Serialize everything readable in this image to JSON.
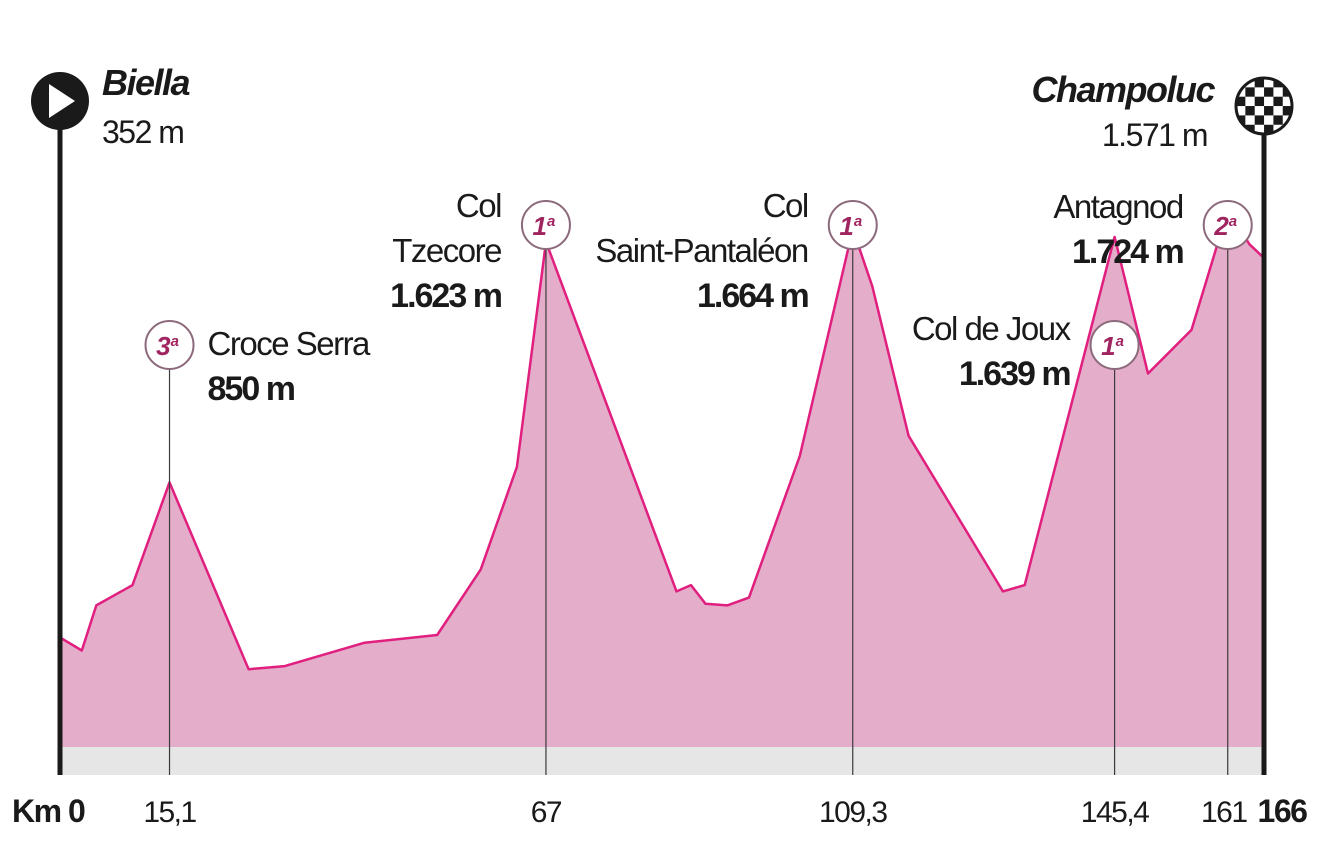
{
  "chart_data": {
    "type": "area",
    "x_unit": "Km",
    "y_unit": "m",
    "start": {
      "name": "Biella",
      "elevation": "352 m",
      "icon": "start-play-icon"
    },
    "finish": {
      "name": "Champoluc",
      "elevation": "1.571 m",
      "icon": "checkered-flag-icon"
    },
    "x_range": [
      0,
      166
    ],
    "y_range": [
      0,
      2400
    ],
    "profile": [
      [
        0,
        352
      ],
      [
        3,
        310
      ],
      [
        5,
        455
      ],
      [
        10,
        520
      ],
      [
        15.1,
        850
      ],
      [
        26,
        250
      ],
      [
        31,
        260
      ],
      [
        42,
        335
      ],
      [
        52,
        360
      ],
      [
        58,
        570
      ],
      [
        63,
        900
      ],
      [
        67,
        1623
      ],
      [
        85,
        500
      ],
      [
        87,
        520
      ],
      [
        89,
        460
      ],
      [
        92,
        455
      ],
      [
        95,
        480
      ],
      [
        102,
        935
      ],
      [
        109.3,
        1664
      ],
      [
        112,
        1480
      ],
      [
        117,
        1000
      ],
      [
        130,
        500
      ],
      [
        133,
        520
      ],
      [
        145.4,
        1639
      ],
      [
        150,
        1200
      ],
      [
        156,
        1340
      ],
      [
        161,
        1724
      ],
      [
        164,
        1615
      ],
      [
        166,
        1571
      ]
    ],
    "climbs": [
      {
        "name": "Croce Serra",
        "elevation": "850 m",
        "km": 15.1,
        "category": "3",
        "category_suffix": "a"
      },
      {
        "name_lines": [
          "Col",
          "Tzecore"
        ],
        "elevation": "1.623 m",
        "km": 67,
        "category": "1",
        "category_suffix": "a"
      },
      {
        "name_lines": [
          "Col",
          "Saint-Pantaléon"
        ],
        "elevation": "1.664 m",
        "km": 109.3,
        "category": "1",
        "category_suffix": "a"
      },
      {
        "name": "Col de Joux",
        "elevation": "1.639 m",
        "km": 145.4,
        "category": "1",
        "category_suffix": "a"
      },
      {
        "name": "Antagnod",
        "elevation": "1.724 m",
        "km": 161,
        "category": "2",
        "category_suffix": "a"
      }
    ],
    "x_tick_labels": [
      {
        "km": 0,
        "label": "Km 0"
      },
      {
        "km": 15.1,
        "label": "15,1"
      },
      {
        "km": 67,
        "label": "67"
      },
      {
        "km": 109.3,
        "label": "109,3"
      },
      {
        "km": 145.4,
        "label": "145,4"
      },
      {
        "km": 161,
        "label": "161"
      },
      {
        "km": 166,
        "label": "166"
      }
    ],
    "colors": {
      "fill": "#e4aecb",
      "line": "#e01f7f",
      "ground": "#e6e6e6",
      "category": "#a0245f",
      "category_ring": "#8c6a7c",
      "text": "#1a1a1a"
    }
  }
}
